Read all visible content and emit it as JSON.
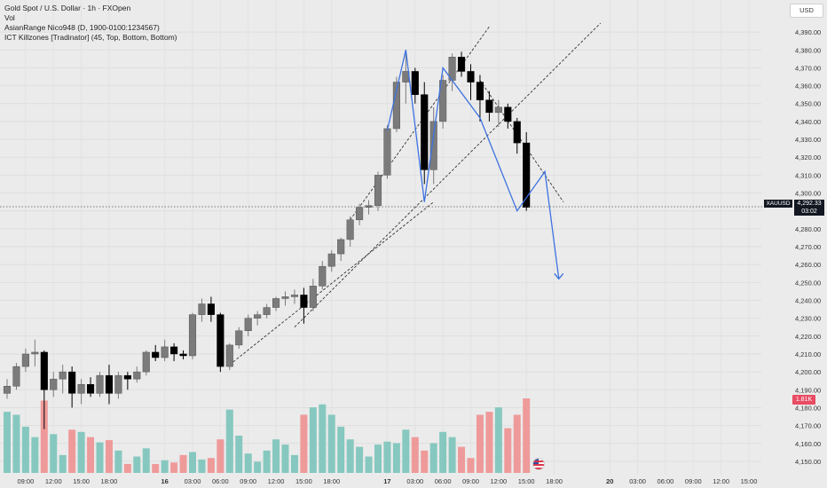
{
  "legend": {
    "title": "Gold Spot / U.S. Dollar · 1h · FXOpen",
    "vol": "Vol",
    "indicator1": "AsianRange Nico948 (D, 1900-0100:1234567)",
    "indicator2": "ICT Killzones [Tradinator] (45, Top, Bottom, Bottom)"
  },
  "currency": "USD",
  "price_tag": {
    "symbol": "XAUUSD",
    "price": "4,292.33",
    "countdown": "03:02"
  },
  "volume_tag": "1.81K",
  "colors": {
    "background": "#ebebeb",
    "candle_up": "#7b7b7b",
    "candle_down": "#000000",
    "volume_up": "#86c8bf",
    "volume_down": "#ef9a9a",
    "pattern_line": "#3d72e0",
    "trend_line": "#333333"
  },
  "chart_data": {
    "type": "candlestick",
    "symbol": "XAUUSD",
    "timeframe": "1h",
    "ylim": [
      4145,
      4397
    ],
    "y_ticks": [
      "4,390.00",
      "4,380.00",
      "4,370.00",
      "4,360.00",
      "4,350.00",
      "4,340.00",
      "4,330.00",
      "4,320.00",
      "4,310.00",
      "4,300.00",
      "4,290.00",
      "4,280.00",
      "4,270.00",
      "4,260.00",
      "4,250.00",
      "4,240.00",
      "4,230.00",
      "4,220.00",
      "4,210.00",
      "4,200.00",
      "4,190.00",
      "4,180.00",
      "4,170.00",
      "4,160.00",
      "4,150.00"
    ],
    "x_ticks": [
      {
        "i": 2,
        "label": "09:00"
      },
      {
        "i": 5,
        "label": "12:00"
      },
      {
        "i": 8,
        "label": "15:00"
      },
      {
        "i": 11,
        "label": "18:00"
      },
      {
        "i": 17,
        "label": "16"
      },
      {
        "i": 20,
        "label": "03:00"
      },
      {
        "i": 23,
        "label": "06:00"
      },
      {
        "i": 26,
        "label": "09:00"
      },
      {
        "i": 29,
        "label": "12:00"
      },
      {
        "i": 32,
        "label": "15:00"
      },
      {
        "i": 35,
        "label": "18:00"
      },
      {
        "i": 41,
        "label": "17"
      },
      {
        "i": 44,
        "label": "03:00"
      },
      {
        "i": 47,
        "label": "06:00"
      },
      {
        "i": 50,
        "label": "09:00"
      },
      {
        "i": 53,
        "label": "12:00"
      },
      {
        "i": 56,
        "label": "15:00"
      },
      {
        "i": 59,
        "label": "18:00"
      },
      {
        "i": 65,
        "label": "20"
      },
      {
        "i": 68,
        "label": "03:00"
      },
      {
        "i": 71,
        "label": "06:00"
      },
      {
        "i": 74,
        "label": "09:00"
      },
      {
        "i": 77,
        "label": "12:00"
      },
      {
        "i": 80,
        "label": "15:00"
      }
    ],
    "candles": [
      {
        "o": 4188,
        "h": 4196,
        "l": 4185,
        "c": 4192,
        "v": 0.82
      },
      {
        "o": 4192,
        "h": 4205,
        "l": 4190,
        "c": 4203,
        "v": 0.78
      },
      {
        "o": 4203,
        "h": 4213,
        "l": 4200,
        "c": 4210,
        "v": 0.62
      },
      {
        "o": 4210,
        "h": 4218,
        "l": 4203,
        "c": 4211,
        "v": 0.48
      },
      {
        "o": 4211,
        "h": 4212,
        "l": 4168,
        "c": 4190,
        "v": 0.97
      },
      {
        "o": 4190,
        "h": 4200,
        "l": 4186,
        "c": 4196,
        "v": 0.52
      },
      {
        "o": 4196,
        "h": 4204,
        "l": 4188,
        "c": 4200,
        "v": 0.24
      },
      {
        "o": 4200,
        "h": 4203,
        "l": 4180,
        "c": 4188,
        "v": 0.58
      },
      {
        "o": 4188,
        "h": 4196,
        "l": 4182,
        "c": 4193,
        "v": 0.55
      },
      {
        "o": 4193,
        "h": 4197,
        "l": 4186,
        "c": 4188,
        "v": 0.48
      },
      {
        "o": 4188,
        "h": 4200,
        "l": 4186,
        "c": 4198,
        "v": 0.41
      },
      {
        "o": 4198,
        "h": 4204,
        "l": 4182,
        "c": 4188,
        "v": 0.44
      },
      {
        "o": 4188,
        "h": 4200,
        "l": 4185,
        "c": 4198,
        "v": 0.3
      },
      {
        "o": 4198,
        "h": 4200,
        "l": 4190,
        "c": 4196,
        "v": 0.12
      },
      {
        "o": 4196,
        "h": 4203,
        "l": 4194,
        "c": 4200,
        "v": 0.22
      },
      {
        "o": 4200,
        "h": 4212,
        "l": 4198,
        "c": 4211,
        "v": 0.33
      },
      {
        "o": 4211,
        "h": 4215,
        "l": 4206,
        "c": 4208,
        "v": 0.12
      },
      {
        "o": 4208,
        "h": 4218,
        "l": 4206,
        "c": 4214,
        "v": 0.17
      },
      {
        "o": 4214,
        "h": 4216,
        "l": 4206,
        "c": 4210,
        "v": 0.14
      },
      {
        "o": 4210,
        "h": 4212,
        "l": 4207,
        "c": 4209,
        "v": 0.24
      },
      {
        "o": 4209,
        "h": 4233,
        "l": 4207,
        "c": 4232,
        "v": 0.28
      },
      {
        "o": 4232,
        "h": 4241,
        "l": 4228,
        "c": 4238,
        "v": 0.18
      },
      {
        "o": 4238,
        "h": 4242,
        "l": 4228,
        "c": 4232,
        "v": 0.2
      },
      {
        "o": 4232,
        "h": 4233,
        "l": 4200,
        "c": 4203,
        "v": 0.45
      },
      {
        "o": 4203,
        "h": 4216,
        "l": 4201,
        "c": 4215,
        "v": 0.85
      },
      {
        "o": 4215,
        "h": 4225,
        "l": 4213,
        "c": 4223,
        "v": 0.5
      },
      {
        "o": 4223,
        "h": 4232,
        "l": 4220,
        "c": 4230,
        "v": 0.26
      },
      {
        "o": 4230,
        "h": 4234,
        "l": 4226,
        "c": 4232,
        "v": 0.15
      },
      {
        "o": 4232,
        "h": 4238,
        "l": 4230,
        "c": 4236,
        "v": 0.3
      },
      {
        "o": 4236,
        "h": 4242,
        "l": 4234,
        "c": 4241,
        "v": 0.45
      },
      {
        "o": 4241,
        "h": 4245,
        "l": 4237,
        "c": 4242,
        "v": 0.38
      },
      {
        "o": 4242,
        "h": 4246,
        "l": 4238,
        "c": 4243,
        "v": 0.24
      },
      {
        "o": 4243,
        "h": 4247,
        "l": 4227,
        "c": 4236,
        "v": 0.78
      },
      {
        "o": 4236,
        "h": 4252,
        "l": 4234,
        "c": 4248,
        "v": 0.88
      },
      {
        "o": 4248,
        "h": 4262,
        "l": 4246,
        "c": 4259,
        "v": 0.92
      },
      {
        "o": 4259,
        "h": 4268,
        "l": 4256,
        "c": 4266,
        "v": 0.78
      },
      {
        "o": 4266,
        "h": 4275,
        "l": 4262,
        "c": 4274,
        "v": 0.62
      },
      {
        "o": 4274,
        "h": 4287,
        "l": 4270,
        "c": 4285,
        "v": 0.45
      },
      {
        "o": 4285,
        "h": 4294,
        "l": 4282,
        "c": 4292,
        "v": 0.35
      },
      {
        "o": 4292,
        "h": 4296,
        "l": 4288,
        "c": 4293,
        "v": 0.22
      },
      {
        "o": 4293,
        "h": 4312,
        "l": 4290,
        "c": 4310,
        "v": 0.38
      },
      {
        "o": 4310,
        "h": 4338,
        "l": 4308,
        "c": 4336,
        "v": 0.42
      },
      {
        "o": 4336,
        "h": 4365,
        "l": 4334,
        "c": 4362,
        "v": 0.4
      },
      {
        "o": 4362,
        "h": 4380,
        "l": 4350,
        "c": 4368,
        "v": 0.58
      },
      {
        "o": 4368,
        "h": 4370,
        "l": 4350,
        "c": 4355,
        "v": 0.48
      },
      {
        "o": 4355,
        "h": 4362,
        "l": 4305,
        "c": 4313,
        "v": 0.3
      },
      {
        "o": 4313,
        "h": 4348,
        "l": 4305,
        "c": 4340,
        "v": 0.4
      },
      {
        "o": 4340,
        "h": 4366,
        "l": 4336,
        "c": 4363,
        "v": 0.55
      },
      {
        "o": 4363,
        "h": 4378,
        "l": 4357,
        "c": 4376,
        "v": 0.48
      },
      {
        "o": 4376,
        "h": 4379,
        "l": 4365,
        "c": 4368,
        "v": 0.35
      },
      {
        "o": 4368,
        "h": 4372,
        "l": 4352,
        "c": 4362,
        "v": 0.2
      },
      {
        "o": 4362,
        "h": 4366,
        "l": 4340,
        "c": 4352,
        "v": 0.78
      },
      {
        "o": 4352,
        "h": 4357,
        "l": 4340,
        "c": 4345,
        "v": 0.82
      },
      {
        "o": 4345,
        "h": 4352,
        "l": 4337,
        "c": 4348,
        "v": 0.88
      },
      {
        "o": 4348,
        "h": 4350,
        "l": 4336,
        "c": 4340,
        "v": 0.6
      },
      {
        "o": 4340,
        "h": 4342,
        "l": 4322,
        "c": 4328,
        "v": 0.78
      },
      {
        "o": 4328,
        "h": 4334,
        "l": 4290,
        "c": 4292,
        "v": 1.0
      }
    ],
    "zigzag": [
      [
        41,
        4335
      ],
      [
        43,
        4380
      ],
      [
        45,
        4295
      ],
      [
        47,
        4370
      ],
      [
        51,
        4342
      ],
      [
        55,
        4290
      ],
      [
        58,
        4312
      ],
      [
        59.5,
        4252
      ]
    ],
    "trend_lines": [
      [
        [
          24,
          4204
        ],
        [
          46,
          4295
        ]
      ],
      [
        [
          31,
          4225
        ],
        [
          64,
          4395
        ]
      ],
      [
        [
          37,
          4285
        ],
        [
          52,
          4393
        ]
      ],
      [
        [
          51,
          4363
        ],
        [
          60,
          4295
        ]
      ]
    ],
    "current_price": 4292.33
  }
}
